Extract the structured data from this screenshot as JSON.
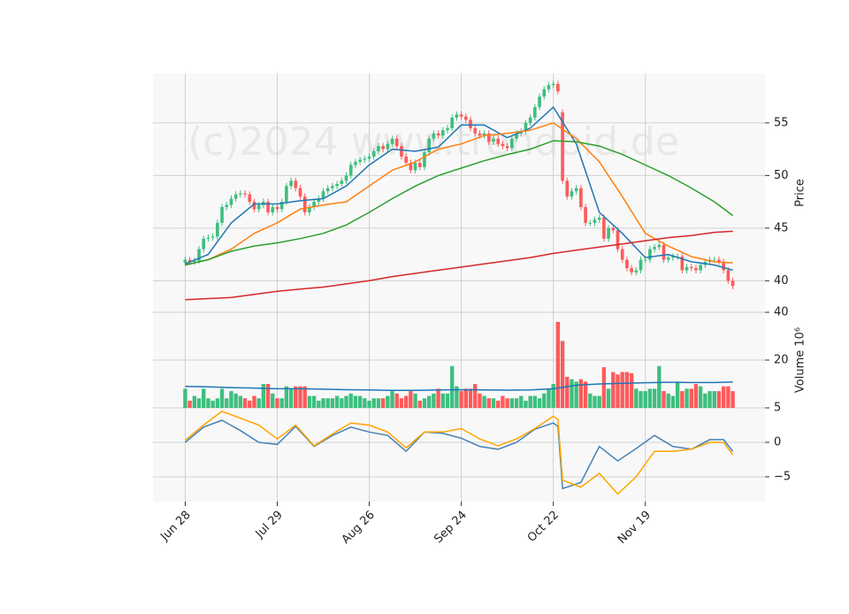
{
  "watermark": "(c)2024 www.trendoid.de",
  "chart_data": [
    {
      "type": "candlestick",
      "y_label": "Price",
      "xlim": [
        -7,
        126
      ],
      "ylim": [
        37,
        59.7
      ],
      "yticks": [
        40,
        45,
        50,
        55
      ],
      "grid": true,
      "up_color": "#3dbf7e",
      "down_color": "#ff5a5a",
      "open": [
        41.7,
        42.0,
        41.8,
        41.9,
        43.0,
        44.0,
        44.1,
        44.2,
        45.5,
        47.0,
        47.2,
        47.8,
        48.2,
        48.3,
        48.2,
        47.5,
        46.8,
        47.2,
        47.5,
        46.5,
        47.0,
        46.8,
        47.5,
        49.0,
        49.5,
        48.8,
        48.0,
        46.5,
        47.0,
        47.5,
        47.8,
        48.5,
        48.8,
        49.0,
        49.2,
        49.5,
        50.0,
        51.0,
        51.3,
        51.5,
        51.6,
        51.8,
        52.3,
        52.8,
        52.5,
        53.0,
        53.5,
        52.8,
        51.8,
        51.2,
        50.5,
        51.2,
        50.8,
        52.2,
        53.5,
        54.0,
        53.8,
        54.3,
        54.5,
        55.5,
        55.8,
        55.6,
        55.3,
        54.5,
        54.0,
        53.8,
        54.0,
        53.2,
        53.5,
        53.0,
        52.8,
        52.6,
        53.5,
        54.0,
        54.2,
        55.0,
        55.5,
        56.5,
        57.5,
        58.2,
        58.6,
        58.7,
        56.0,
        49.5,
        48.0,
        48.5,
        48.8,
        47.0,
        45.5,
        45.5,
        45.8,
        46.0,
        44.0,
        45.0,
        44.8,
        43.0,
        42.0,
        41.2,
        40.8,
        41.0,
        42.0,
        42.0,
        43.0,
        43.2,
        43.4,
        42.0,
        42.2,
        42.3,
        42.3,
        41.0,
        41.3,
        41.2,
        41.0,
        41.5,
        41.8,
        42.0,
        42.0,
        41.8,
        41.0,
        40.0
      ],
      "high": [
        42.3,
        42.3,
        42.2,
        43.3,
        44.3,
        44.4,
        44.5,
        45.8,
        47.3,
        47.5,
        48.1,
        48.5,
        48.6,
        48.6,
        48.5,
        47.8,
        47.5,
        47.8,
        47.8,
        47.3,
        47.3,
        47.8,
        49.3,
        49.8,
        49.8,
        49.1,
        48.3,
        47.3,
        47.8,
        48.1,
        48.8,
        49.1,
        49.3,
        49.5,
        49.8,
        50.3,
        51.3,
        51.6,
        51.8,
        51.9,
        52.1,
        52.6,
        53.1,
        53.1,
        53.3,
        53.8,
        53.8,
        53.1,
        52.1,
        51.5,
        51.5,
        51.5,
        52.5,
        53.8,
        54.3,
        54.3,
        54.6,
        54.8,
        55.8,
        56.1,
        56.1,
        55.9,
        55.6,
        54.8,
        54.3,
        54.3,
        54.3,
        53.8,
        53.8,
        53.3,
        53.1,
        53.8,
        54.3,
        54.5,
        55.3,
        55.8,
        56.8,
        57.8,
        58.5,
        58.9,
        59.0,
        59.0,
        56.3,
        49.8,
        48.8,
        49.1,
        49.1,
        47.3,
        45.8,
        46.1,
        46.3,
        46.3,
        45.3,
        45.3,
        45.1,
        43.3,
        42.3,
        41.5,
        41.3,
        42.3,
        42.3,
        43.3,
        43.5,
        43.7,
        43.7,
        42.5,
        42.6,
        42.6,
        42.6,
        41.6,
        41.6,
        41.5,
        41.8,
        42.1,
        42.3,
        42.3,
        42.3,
        42.1,
        41.3,
        40.3
      ],
      "low": [
        41.4,
        41.5,
        41.5,
        41.6,
        42.7,
        43.7,
        43.8,
        43.9,
        45.2,
        46.7,
        46.9,
        47.5,
        47.9,
        47.9,
        47.2,
        46.5,
        46.5,
        46.9,
        46.2,
        46.2,
        46.5,
        46.5,
        47.2,
        48.7,
        48.5,
        47.7,
        46.2,
        46.2,
        46.7,
        47.2,
        47.5,
        48.2,
        48.5,
        48.7,
        48.9,
        49.2,
        49.7,
        50.7,
        51.0,
        51.2,
        51.3,
        51.5,
        52.0,
        52.2,
        52.2,
        52.7,
        52.5,
        51.5,
        50.9,
        50.2,
        50.2,
        50.5,
        50.5,
        51.9,
        53.2,
        53.5,
        53.5,
        54.0,
        54.2,
        55.2,
        55.3,
        55.0,
        54.2,
        53.7,
        53.5,
        53.5,
        52.9,
        52.9,
        52.7,
        52.5,
        52.3,
        52.3,
        53.2,
        53.7,
        53.9,
        54.7,
        55.2,
        56.2,
        57.2,
        57.9,
        58.3,
        57.7,
        49.2,
        47.7,
        47.7,
        48.2,
        46.7,
        45.2,
        45.2,
        45.2,
        45.5,
        43.7,
        43.7,
        44.5,
        42.7,
        41.7,
        40.9,
        40.5,
        40.5,
        40.7,
        41.7,
        41.7,
        42.7,
        42.9,
        41.7,
        41.7,
        41.9,
        42.0,
        40.7,
        40.7,
        40.9,
        40.7,
        40.7,
        41.2,
        41.5,
        41.7,
        41.5,
        40.7,
        39.7,
        39.2
      ],
      "close": [
        42.0,
        41.8,
        41.9,
        43.0,
        44.0,
        44.1,
        44.2,
        45.5,
        47.0,
        47.2,
        47.8,
        48.2,
        48.3,
        48.2,
        47.5,
        46.8,
        47.2,
        47.5,
        46.5,
        47.0,
        46.8,
        47.5,
        49.0,
        49.5,
        48.8,
        48.0,
        46.5,
        47.0,
        47.5,
        47.8,
        48.5,
        48.8,
        49.0,
        49.2,
        49.5,
        50.0,
        51.0,
        51.3,
        51.5,
        51.6,
        51.8,
        52.3,
        52.8,
        52.5,
        53.0,
        53.5,
        52.8,
        51.8,
        51.2,
        50.5,
        51.2,
        50.8,
        52.2,
        53.5,
        54.0,
        53.8,
        54.3,
        54.5,
        55.5,
        55.8,
        55.6,
        55.3,
        54.5,
        54.0,
        53.8,
        54.0,
        53.2,
        53.5,
        53.0,
        52.8,
        52.6,
        53.5,
        54.0,
        54.2,
        55.0,
        55.5,
        56.5,
        57.5,
        58.2,
        58.6,
        58.7,
        58.0,
        49.5,
        48.0,
        48.5,
        48.8,
        47.0,
        45.5,
        45.5,
        45.8,
        46.0,
        44.0,
        45.0,
        44.8,
        43.0,
        42.0,
        41.2,
        40.8,
        41.0,
        42.0,
        42.0,
        43.0,
        43.2,
        43.4,
        42.0,
        42.2,
        42.3,
        42.3,
        41.0,
        41.3,
        41.2,
        41.0,
        41.5,
        41.8,
        42.0,
        42.0,
        41.8,
        41.0,
        40.0,
        39.5
      ],
      "line_x": [
        0,
        5,
        10,
        15,
        20,
        25,
        30,
        35,
        40,
        45,
        50,
        55,
        60,
        65,
        70,
        75,
        80,
        85,
        90,
        95,
        100,
        105,
        110,
        115,
        119
      ],
      "series": [
        {
          "color": "#1f77b4",
          "values": [
            41.6,
            42.5,
            45.5,
            47.3,
            47.3,
            47.6,
            47.8,
            49.0,
            51.0,
            52.5,
            52.3,
            52.7,
            54.8,
            54.8,
            53.6,
            54.5,
            56.5,
            53.0,
            46.5,
            44.5,
            42.2,
            42.5,
            41.8,
            41.5,
            41.0
          ]
        },
        {
          "color": "#ff7f0e",
          "values": [
            41.5,
            42.0,
            43.0,
            44.5,
            45.5,
            46.8,
            47.2,
            47.5,
            49.0,
            50.5,
            51.3,
            52.5,
            53.0,
            53.8,
            54.0,
            54.3,
            55.0,
            53.5,
            51.3,
            48.0,
            44.5,
            43.3,
            42.3,
            41.8,
            41.7
          ]
        },
        {
          "color": "#2ca02c",
          "values": [
            41.5,
            42.0,
            42.8,
            43.3,
            43.6,
            44.0,
            44.5,
            45.3,
            46.5,
            47.8,
            49.0,
            50.0,
            50.7,
            51.4,
            52.0,
            52.5,
            53.3,
            53.2,
            52.8,
            52.0,
            51.0,
            50.0,
            48.8,
            47.5,
            46.2
          ]
        },
        {
          "color": "#d62728",
          "values": [
            38.2,
            38.3,
            38.4,
            38.7,
            39.0,
            39.2,
            39.4,
            39.7,
            40.0,
            40.4,
            40.7,
            41.0,
            41.3,
            41.6,
            41.9,
            42.2,
            42.6,
            42.9,
            43.2,
            43.5,
            43.8,
            44.1,
            44.3,
            44.6,
            44.7
          ]
        }
      ]
    },
    {
      "type": "bar",
      "y_label": "Volume 10⁶",
      "ylim": [
        0,
        40
      ],
      "yticks": [
        20,
        40
      ],
      "grid": true,
      "values": [
        8,
        3,
        5,
        4,
        8,
        4,
        3,
        4,
        8,
        4,
        7,
        6,
        5,
        4,
        3,
        5,
        4,
        10,
        10,
        6,
        4,
        4,
        9,
        8,
        9,
        9,
        9,
        5,
        5,
        3,
        4,
        4,
        4,
        5,
        4,
        5,
        6,
        5,
        5,
        4,
        3,
        4,
        4,
        4,
        5,
        7,
        6,
        4,
        5,
        7,
        6,
        3,
        4,
        5,
        6,
        8,
        6,
        6,
        17.5,
        9,
        7,
        8,
        8,
        10,
        6,
        5,
        4,
        4,
        3,
        5,
        4,
        4,
        4,
        5,
        3,
        5,
        5,
        4,
        6,
        8,
        10,
        36,
        28,
        13,
        12,
        11,
        12,
        11,
        6,
        5,
        5,
        17,
        8,
        15,
        14,
        15,
        15,
        14.5,
        8,
        7,
        7,
        8,
        8,
        17.5,
        7,
        6,
        5,
        11,
        7,
        8,
        8,
        10,
        9,
        6,
        7,
        7,
        7,
        9,
        9,
        7
      ],
      "line_x": [
        0,
        5,
        10,
        15,
        20,
        25,
        30,
        35,
        40,
        45,
        50,
        55,
        60,
        65,
        70,
        75,
        80,
        85,
        90,
        95,
        100,
        105,
        110,
        115,
        119
      ],
      "series": [
        {
          "color": "#1f77b4",
          "values": [
            9,
            8.8,
            8.5,
            8.3,
            8,
            8,
            7.8,
            7.6,
            7.5,
            7.3,
            7.3,
            7.5,
            7.6,
            7.5,
            7.4,
            7.5,
            8,
            9.5,
            10,
            10.3,
            10.5,
            10.7,
            10.6,
            10.6,
            10.8
          ]
        }
      ]
    },
    {
      "type": "line",
      "ylim": [
        -8.6,
        5
      ],
      "yticks": [
        {
          "value": -5,
          "label": "−5"
        },
        0,
        5
      ],
      "grid": true,
      "xticks": [
        {
          "value": 0,
          "label": "Jun 28"
        },
        {
          "value": 20,
          "label": "Jul 29"
        },
        {
          "value": 40,
          "label": "Aug 26"
        },
        {
          "value": 60,
          "label": "Sep 24"
        },
        {
          "value": 80,
          "label": "Oct 22"
        },
        {
          "value": 100,
          "label": "Nov 19"
        }
      ],
      "x": [
        0,
        4,
        8,
        12,
        16,
        20,
        24,
        28,
        32,
        36,
        40,
        44,
        48,
        52,
        56,
        60,
        64,
        68,
        72,
        76,
        80,
        81,
        82,
        86,
        90,
        94,
        98,
        102,
        106,
        110,
        114,
        117,
        119
      ],
      "series": [
        {
          "color": "#4682b4",
          "values": [
            0,
            2.2,
            3.2,
            1.7,
            0,
            -0.3,
            2.3,
            -0.6,
            1.0,
            2.2,
            1.5,
            1.0,
            -1.3,
            1.5,
            1.3,
            0.6,
            -0.6,
            -1.0,
            0,
            1.9,
            2.8,
            2.3,
            -6.7,
            -5.8,
            -0.6,
            -2.7,
            -0.9,
            1.0,
            -0.6,
            -1.0,
            0.4,
            0.4,
            -1.3
          ]
        },
        {
          "color": "#ffa500",
          "values": [
            0.3,
            2.5,
            4.5,
            3.5,
            2.5,
            0.5,
            2.5,
            -0.5,
            1.2,
            2.8,
            2.5,
            1.5,
            -0.8,
            1.5,
            1.5,
            2.0,
            0.5,
            -0.5,
            0.5,
            2.0,
            3.8,
            3.3,
            -5.5,
            -6.5,
            -4.5,
            -7.5,
            -5.0,
            -1.3,
            -1.3,
            -1.0,
            0,
            0,
            -1.8
          ]
        }
      ]
    }
  ]
}
